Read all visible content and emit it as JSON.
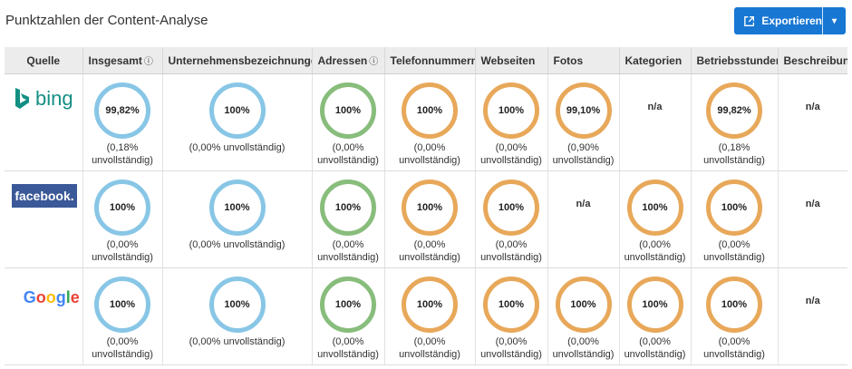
{
  "page": {
    "title": "Punktzahlen der Content-Analyse"
  },
  "toolbar": {
    "export_label": "Exportieren",
    "caret": "▾"
  },
  "table": {
    "headers": [
      "Quelle",
      "Insgesamt",
      "Unternehmensbezeichnungen",
      "Adressen",
      "Telefonnummern",
      "Webseiten",
      "Fotos",
      "Kategorien",
      "Betriebsstunden",
      "Beschreibungen"
    ],
    "rows": [
      {
        "source": "bing",
        "cells": [
          {
            "value": "99,82%",
            "sub": [
              "(0,18%",
              "unvollständig)"
            ],
            "color": "blue"
          },
          {
            "value": "100%",
            "sub": [
              "(0,00% unvollständig)"
            ],
            "color": "blue"
          },
          {
            "value": "100%",
            "sub": [
              "(0,00%",
              "unvollständig)"
            ],
            "color": "green"
          },
          {
            "value": "100%",
            "sub": [
              "(0,00%",
              "unvollständig)"
            ],
            "color": "orange"
          },
          {
            "value": "100%",
            "sub": [
              "(0,00%",
              "unvollständig)"
            ],
            "color": "orange"
          },
          {
            "value": "99,10%",
            "sub": [
              "(0,90%",
              "unvollständig)"
            ],
            "color": "orange"
          },
          {
            "na": "n/a"
          },
          {
            "value": "99,82%",
            "sub": [
              "(0,18%",
              "unvollständig)"
            ],
            "color": "orange"
          },
          {
            "na": "n/a"
          }
        ]
      },
      {
        "source": "facebook.",
        "cells": [
          {
            "value": "100%",
            "sub": [
              "(0,00%",
              "unvollständig)"
            ],
            "color": "blue"
          },
          {
            "value": "100%",
            "sub": [
              "(0,00% unvollständig)"
            ],
            "color": "blue"
          },
          {
            "value": "100%",
            "sub": [
              "(0,00%",
              "unvollständig)"
            ],
            "color": "green"
          },
          {
            "value": "100%",
            "sub": [
              "(0,00%",
              "unvollständig)"
            ],
            "color": "orange"
          },
          {
            "value": "100%",
            "sub": [
              "(0,00%",
              "unvollständig)"
            ],
            "color": "orange"
          },
          {
            "na": "n/a"
          },
          {
            "value": "100%",
            "sub": [
              "(0,00%",
              "unvollständig)"
            ],
            "color": "orange"
          },
          {
            "value": "100%",
            "sub": [
              "(0,00%",
              "unvollständig)"
            ],
            "color": "orange"
          },
          {
            "na": "n/a"
          }
        ]
      },
      {
        "source": "Google",
        "cells": [
          {
            "value": "100%",
            "sub": [
              "(0,00%",
              "unvollständig)"
            ],
            "color": "blue"
          },
          {
            "value": "100%",
            "sub": [
              "(0,00% unvollständig)"
            ],
            "color": "blue"
          },
          {
            "value": "100%",
            "sub": [
              "(0,00%",
              "unvollständig)"
            ],
            "color": "green"
          },
          {
            "value": "100%",
            "sub": [
              "(0,00%",
              "unvollständig)"
            ],
            "color": "orange"
          },
          {
            "value": "100%",
            "sub": [
              "(0,00%",
              "unvollständig)"
            ],
            "color": "orange"
          },
          {
            "value": "100%",
            "sub": [
              "(0,00%",
              "unvollständig)"
            ],
            "color": "orange"
          },
          {
            "value": "100%",
            "sub": [
              "(0,00%",
              "unvollständig)"
            ],
            "color": "orange"
          },
          {
            "value": "100%",
            "sub": [
              "(0,00%",
              "unvollständig)"
            ],
            "color": "orange"
          },
          {
            "na": "n/a"
          }
        ]
      }
    ]
  },
  "colors": {
    "blue": "#88c6e6",
    "green": "#88bd7c",
    "orange": "#e8a85a",
    "accent": "#1877d3"
  },
  "icons": {
    "export": "external-link-icon",
    "info": "info-icon"
  }
}
